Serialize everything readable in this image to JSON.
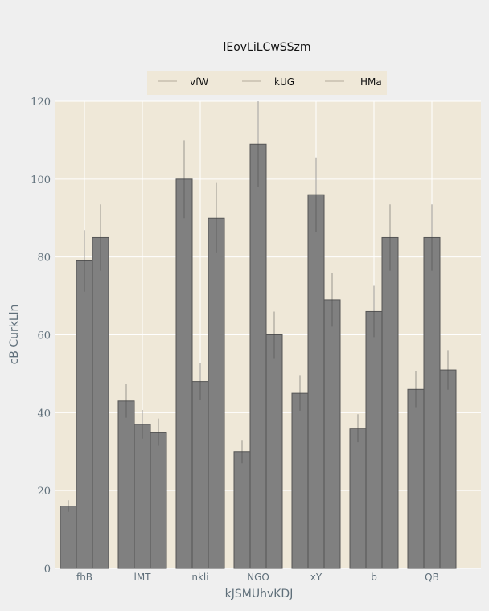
{
  "chart_data": {
    "type": "bar",
    "title": "lEovLiLCwSSzm",
    "xlabel": "kJSMUhvKDJ",
    "ylabel": "cB CurkLln",
    "ylim": [
      0,
      120
    ],
    "yticks": [
      0,
      20,
      40,
      60,
      80,
      100,
      120
    ],
    "grid": true,
    "legend_position": "top-center",
    "categories": [
      "fhB",
      "lMT",
      "nkli",
      "NGO",
      "xY",
      "b",
      "QB"
    ],
    "series": [
      {
        "name": "vfW",
        "values": [
          16,
          43,
          100,
          30,
          45,
          36,
          46
        ],
        "errors": [
          1.5,
          4.3,
          10,
          3,
          4.5,
          3.6,
          4.6
        ]
      },
      {
        "name": "kUG",
        "values": [
          79,
          37,
          48,
          109,
          96,
          66,
          85
        ],
        "errors": [
          7.9,
          3.7,
          4.8,
          11,
          9.6,
          6.6,
          8.5
        ]
      },
      {
        "name": "HMa",
        "values": [
          85,
          35,
          90,
          60,
          69,
          85,
          51
        ],
        "errors": [
          8.5,
          3.5,
          9,
          6,
          6.9,
          8.5,
          5.1
        ]
      }
    ],
    "colors": {
      "bar": "#808080",
      "bar_edge": "#555555",
      "plot_bg": "#efe8d8",
      "grid": "#ffffff",
      "error": "#444444",
      "legend_line": "#bfb6a6"
    }
  }
}
